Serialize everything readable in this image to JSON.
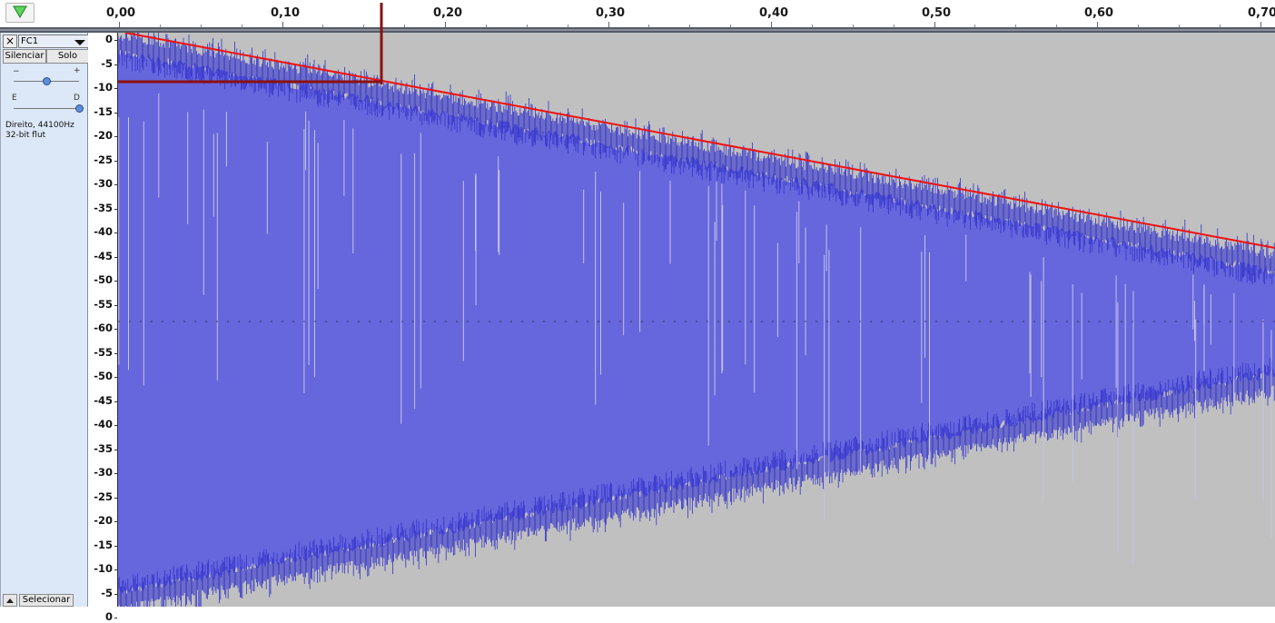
{
  "timeline": {
    "play_head_icon": "play-triangle-icon",
    "ticks": [
      "0,00",
      "0,10",
      "0,20",
      "0,30",
      "0,40",
      "0,50",
      "0,60",
      "0,70"
    ]
  },
  "track": {
    "close_label": "×",
    "name": "FC1",
    "mute_label": "Silenciar",
    "solo_label": "Solo",
    "gain_minus": "−",
    "gain_plus": "+",
    "pan_left": "E",
    "pan_right": "D",
    "gain_value": 0.5,
    "pan_value": 1.0,
    "info_line1": "Direito, 44100Hz",
    "info_line2": "32-bit flut",
    "select_label": "Selecionar"
  },
  "db_scale": {
    "labels": [
      "0",
      "-5",
      "-10",
      "-15",
      "-20",
      "-25",
      "-30",
      "-35",
      "-40",
      "-45",
      "-50",
      "-55",
      "-60",
      "-55",
      "-50",
      "-45",
      "-40",
      "-35",
      "-30",
      "-25",
      "-20",
      "-15",
      "-10",
      "-5",
      "0"
    ]
  },
  "colors": {
    "wave_fill": "#6666dd",
    "wave_detail": "#3333cc",
    "background": "#c0c0c0",
    "decay_line": "#ee1111",
    "cursor_marker": "#8b1010"
  }
}
